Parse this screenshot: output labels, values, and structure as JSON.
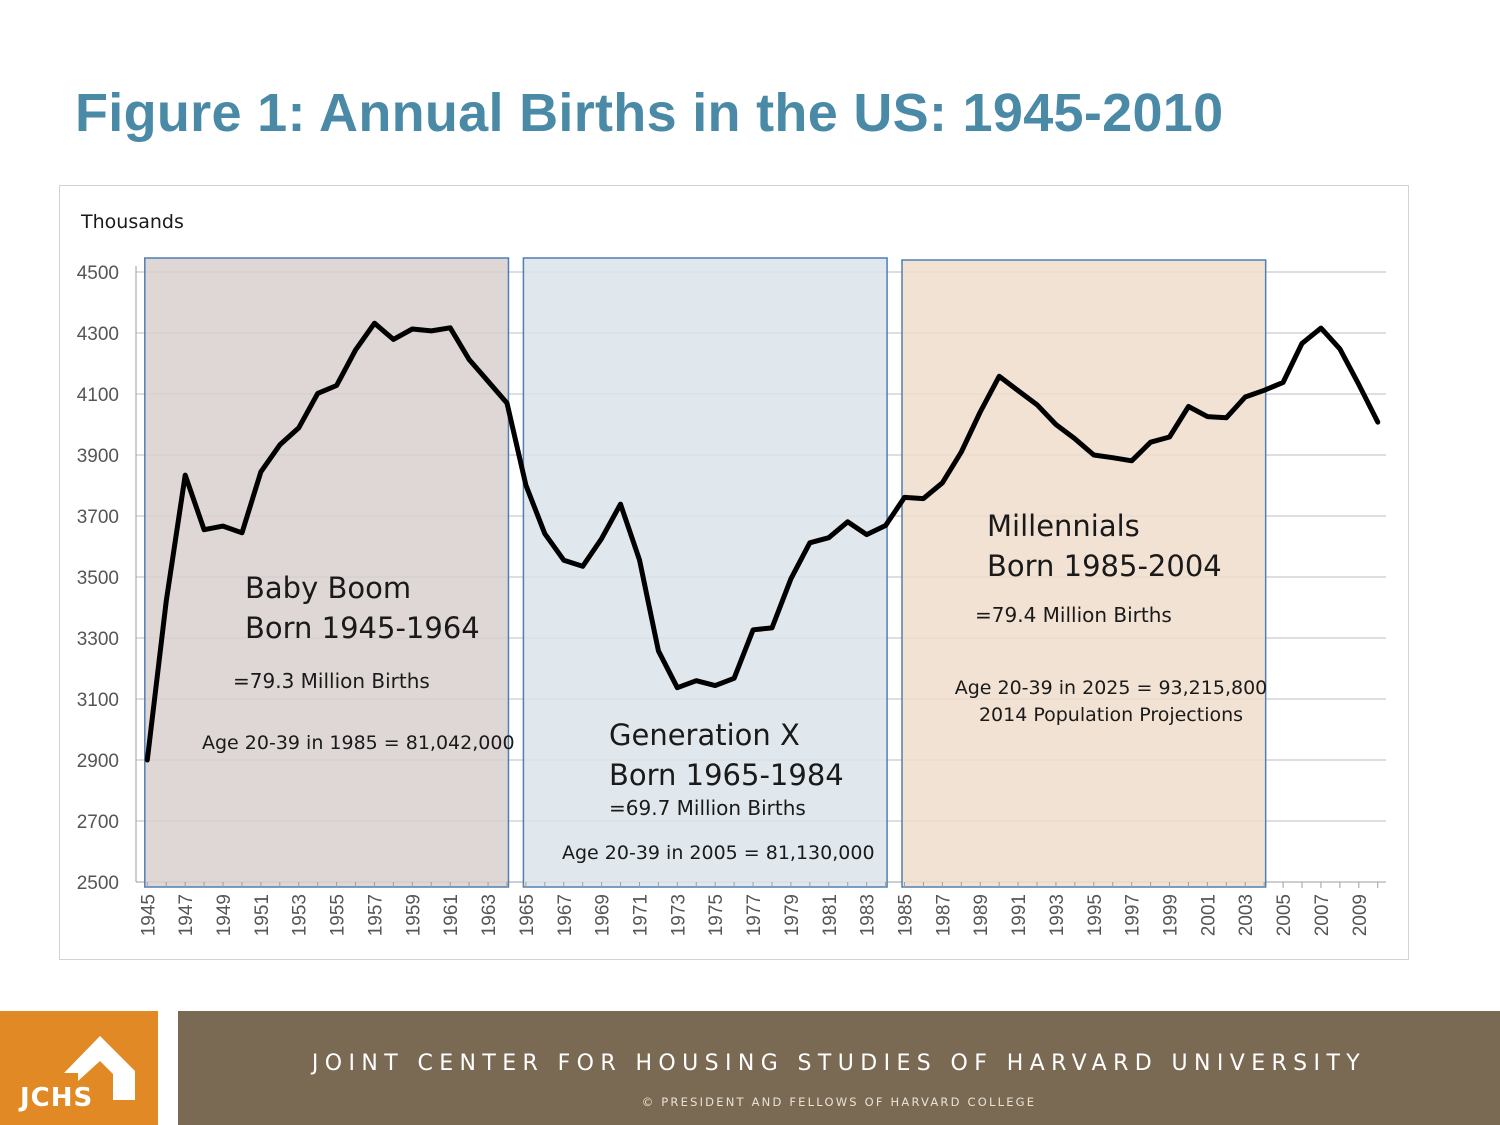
{
  "title": "Figure 1: Annual Births in the US: 1945-2010",
  "colors": {
    "title": "#4a8aa6",
    "line": "#000000",
    "baby_boom_fill": "#d8d0ce",
    "gen_x_fill": "#dce4ea",
    "millennials_fill": "#f0ddcc",
    "band_border": "#4f7fb3",
    "footer_logo": "#e18a25",
    "footer_bar": "#7b6a53"
  },
  "chart_data": {
    "type": "line",
    "ylabel": "Thousands",
    "ylim": [
      2500,
      4500
    ],
    "yticks": [
      4500,
      4300,
      4100,
      3900,
      3700,
      3500,
      3300,
      3100,
      2900,
      2700,
      2500
    ],
    "xtick_labels": [
      "1945",
      "1947",
      "1949",
      "1951",
      "1953",
      "1955",
      "1957",
      "1959",
      "1961",
      "1963",
      "1965",
      "1967",
      "1969",
      "1971",
      "1973",
      "1975",
      "1977",
      "1979",
      "1981",
      "1983",
      "1985",
      "1987",
      "1989",
      "1991",
      "1993",
      "1995",
      "1997",
      "1999",
      "2001",
      "2003",
      "2005",
      "2007",
      "2009"
    ],
    "x": [
      1945,
      1946,
      1947,
      1948,
      1949,
      1950,
      1951,
      1952,
      1953,
      1954,
      1955,
      1956,
      1957,
      1958,
      1959,
      1960,
      1961,
      1962,
      1963,
      1964,
      1965,
      1966,
      1967,
      1968,
      1969,
      1970,
      1971,
      1972,
      1973,
      1974,
      1975,
      1976,
      1977,
      1978,
      1979,
      1980,
      1981,
      1982,
      1983,
      1984,
      1985,
      1986,
      1987,
      1988,
      1989,
      1990,
      1991,
      1992,
      1993,
      1994,
      1995,
      1996,
      1997,
      1998,
      1999,
      2000,
      2001,
      2002,
      2003,
      2004,
      2005,
      2006,
      2007,
      2008,
      2009,
      2010
    ],
    "series": [
      {
        "name": "Annual Births",
        "values": [
          2900,
          3420,
          3834,
          3655,
          3667,
          3645,
          3845,
          3933,
          3989,
          4102,
          4128,
          4244,
          4332,
          4279,
          4313,
          4307,
          4317,
          4213,
          4142,
          4070,
          3801,
          3642,
          3555,
          3535,
          3626,
          3739,
          3556,
          3258,
          3137,
          3160,
          3144,
          3168,
          3327,
          3333,
          3494,
          3612,
          3629,
          3681,
          3639,
          3669,
          3761,
          3757,
          3809,
          3910,
          4041,
          4158,
          4111,
          4065,
          4000,
          3953,
          3900,
          3891,
          3881,
          3942,
          3959,
          4059,
          4026,
          4022,
          4090,
          4112,
          4138,
          4266,
          4316,
          4248,
          4131,
          4008
        ]
      }
    ],
    "regions": [
      {
        "name": "Baby Boom",
        "start": 1945,
        "end": 1964
      },
      {
        "name": "Generation X",
        "start": 1965,
        "end": 1984
      },
      {
        "name": "Millennials",
        "start": 1985,
        "end": 2004
      }
    ],
    "annotations": {
      "baby_boom": {
        "title": "Baby Boom",
        "born": "Born 1945-1964",
        "births": "=79.3 Million Births",
        "age": "Age 20-39 in 1985 = 81,042,000"
      },
      "gen_x": {
        "title": "Generation X",
        "born": "Born 1965-1984",
        "births": "=69.7 Million Births",
        "age": "Age 20-39 in 2005 = 81,130,000"
      },
      "millennials": {
        "title": "Millennials",
        "born": "Born 1985-2004",
        "births": "=79.4 Million Births",
        "age": "Age 20-39 in 2025 = 93,215,800",
        "note": "2014 Population Projections"
      }
    }
  },
  "footer": {
    "logo_text": "JCHS",
    "organization": "JOINT CENTER FOR HOUSING STUDIES OF HARVARD UNIVERSITY",
    "copyright": "© PRESIDENT AND FELLOWS OF HARVARD COLLEGE"
  }
}
